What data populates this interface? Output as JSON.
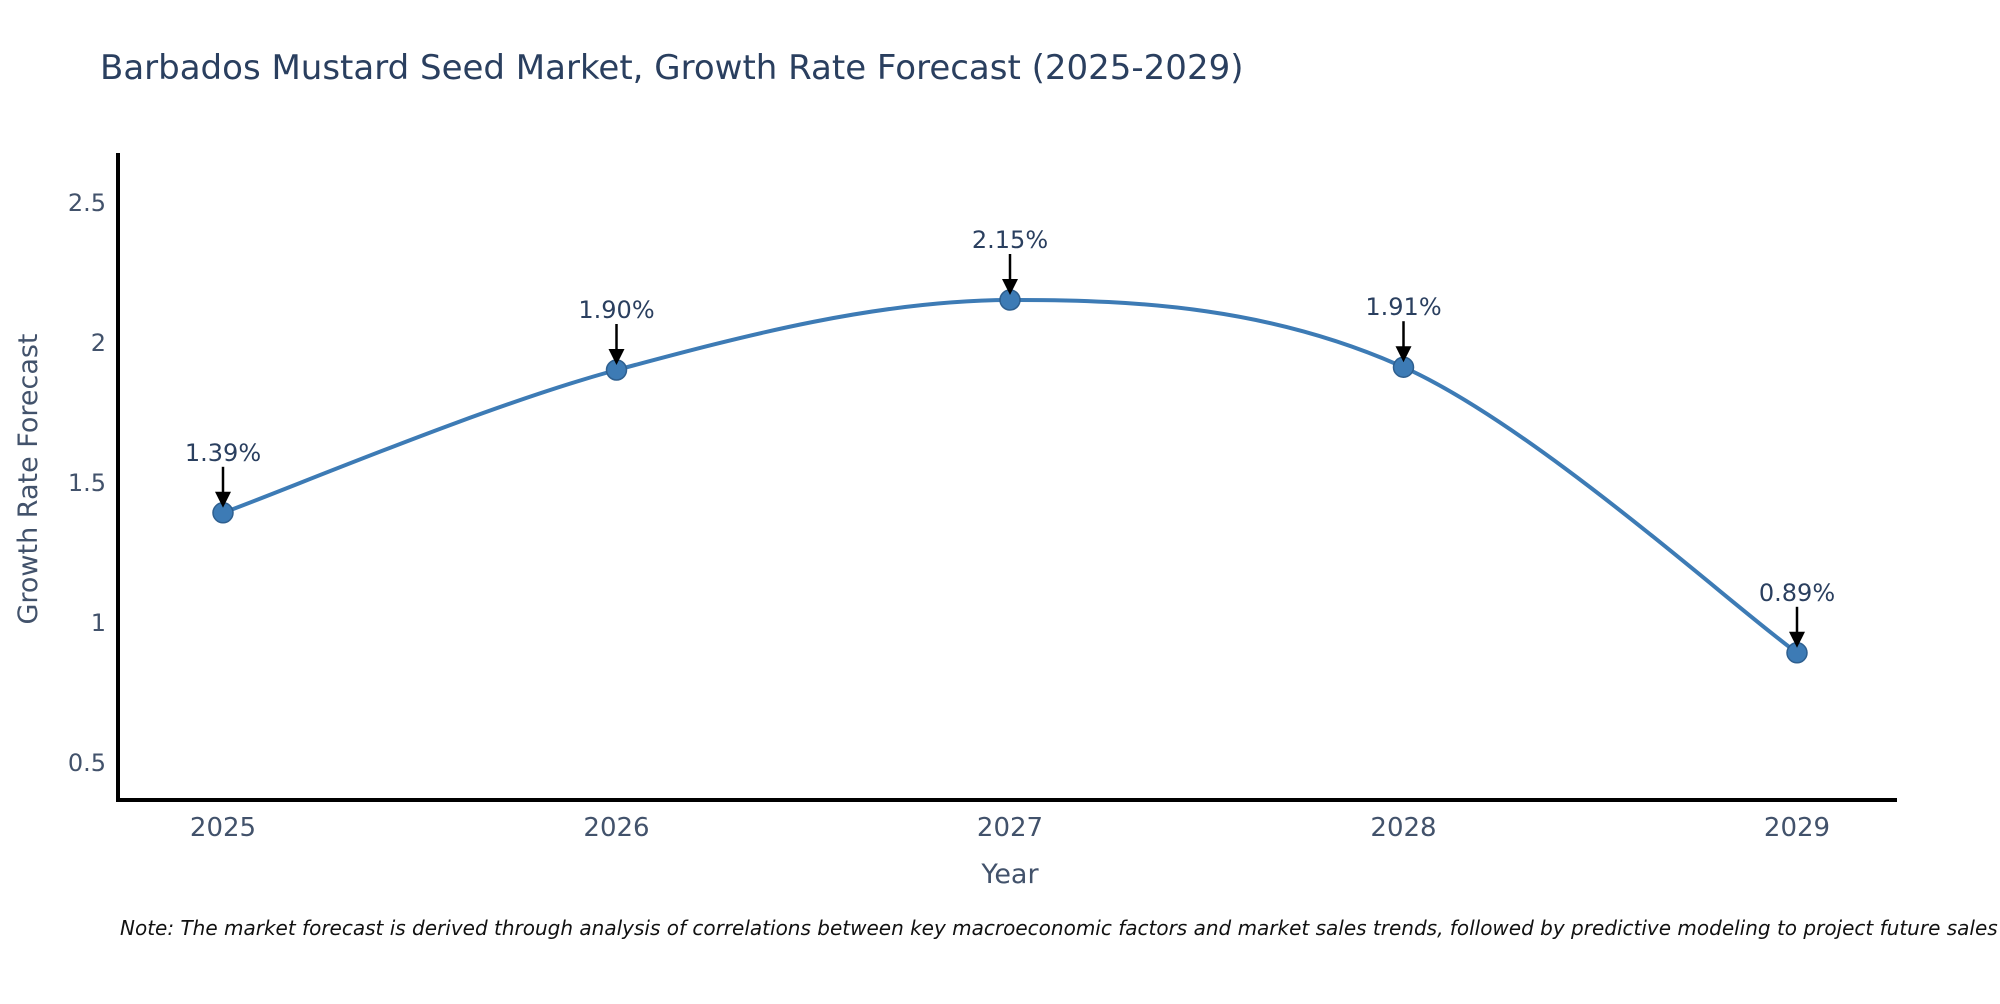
{
  "note": {
    "text": "Note: The market forecast is derived through analysis of correlations between key macroeconomic factors and market sales trends, followed by predictive modeling to project future sales"
  },
  "chart_data": {
    "type": "line",
    "line_shape": "spline",
    "title": "Barbados Mustard Seed Market, Growth Rate Forecast (2025-2029)",
    "xlabel": "Year",
    "ylabel": "Growth Rate Forecast",
    "categories": [
      "2025",
      "2026",
      "2027",
      "2028",
      "2029"
    ],
    "values": [
      1.39,
      1.9,
      2.15,
      1.91,
      0.89
    ],
    "point_labels": [
      "1.39%",
      "1.90%",
      "2.15%",
      "1.91%",
      "0.89%"
    ],
    "y_tick_values": [
      0.5,
      1,
      1.5,
      2,
      2.5
    ],
    "y_tick_labels": [
      "0.5",
      "1",
      "1.5",
      "2",
      "2.5"
    ],
    "ylim": [
      0.36,
      2.67
    ],
    "grid": false,
    "legend": "none",
    "colors": {
      "line": "#3d7bb5",
      "marker": "#3d7bb5",
      "marker_stroke": "#2e5f8f",
      "annotation_text": "#2a3f5f",
      "annotation_arrow": "#000000",
      "axis_line": "#000000",
      "tick_text": "#42526b",
      "title_text": "#2a3f5f"
    }
  }
}
